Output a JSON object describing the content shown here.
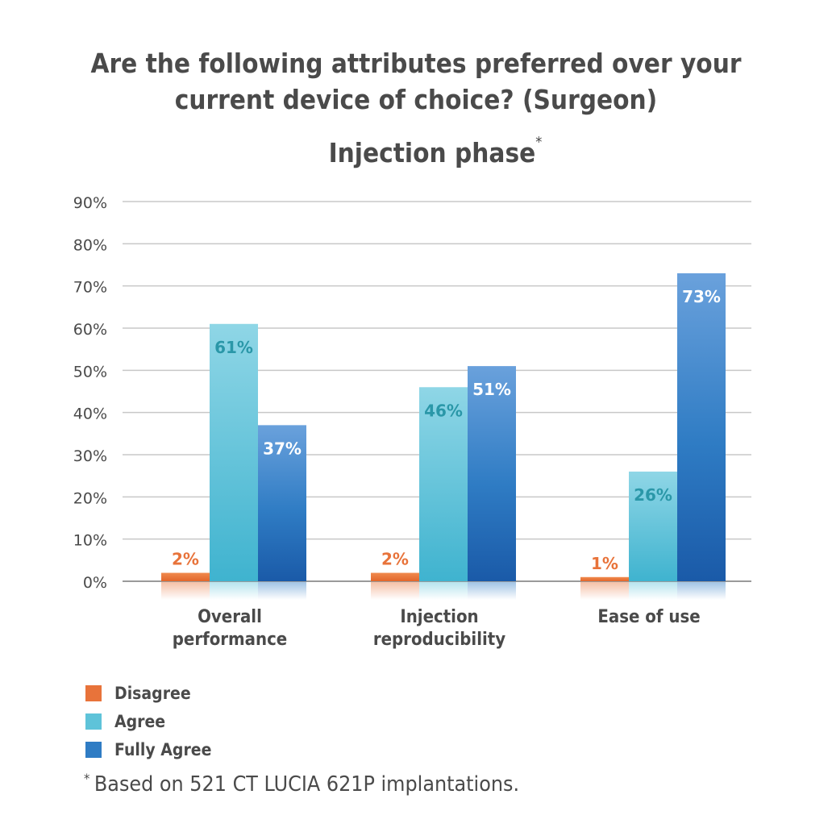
{
  "chart_data": {
    "type": "bar",
    "title_lines": [
      "Are the following attributes preferred over your",
      "current device of choice? (Surgeon)"
    ],
    "subtitle": "Injection phase",
    "subtitle_mark": "*",
    "categories": [
      [
        "Overall",
        "performance"
      ],
      [
        "Injection",
        "reproducibility"
      ],
      [
        "Ease of use"
      ]
    ],
    "series": [
      {
        "name": "Disagree",
        "values": [
          2,
          2,
          1
        ],
        "labels": [
          "2%",
          "2%",
          "1%"
        ],
        "color": "#e8733a",
        "label_color": "#e8733a"
      },
      {
        "name": "Agree",
        "values": [
          61,
          46,
          26
        ],
        "labels": [
          "61%",
          "46%",
          "26%"
        ],
        "color": "#5ec3d9",
        "label_color": "#2a97a8"
      },
      {
        "name": "Fully Agree",
        "values": [
          37,
          51,
          73
        ],
        "labels": [
          "37%",
          "51%",
          "73%"
        ],
        "color": "#2f7cc4",
        "label_color": "#ffffff"
      }
    ],
    "y_ticks": [
      "0%",
      "10%",
      "20%",
      "30%",
      "40%",
      "50%",
      "60%",
      "70%",
      "80%",
      "90%"
    ],
    "ylim": [
      0,
      90
    ],
    "grid": true,
    "legend_position": "bottom-left",
    "footnote_mark": "*",
    "footnote": "Based on 521 CT LUCIA 621P implantations."
  }
}
